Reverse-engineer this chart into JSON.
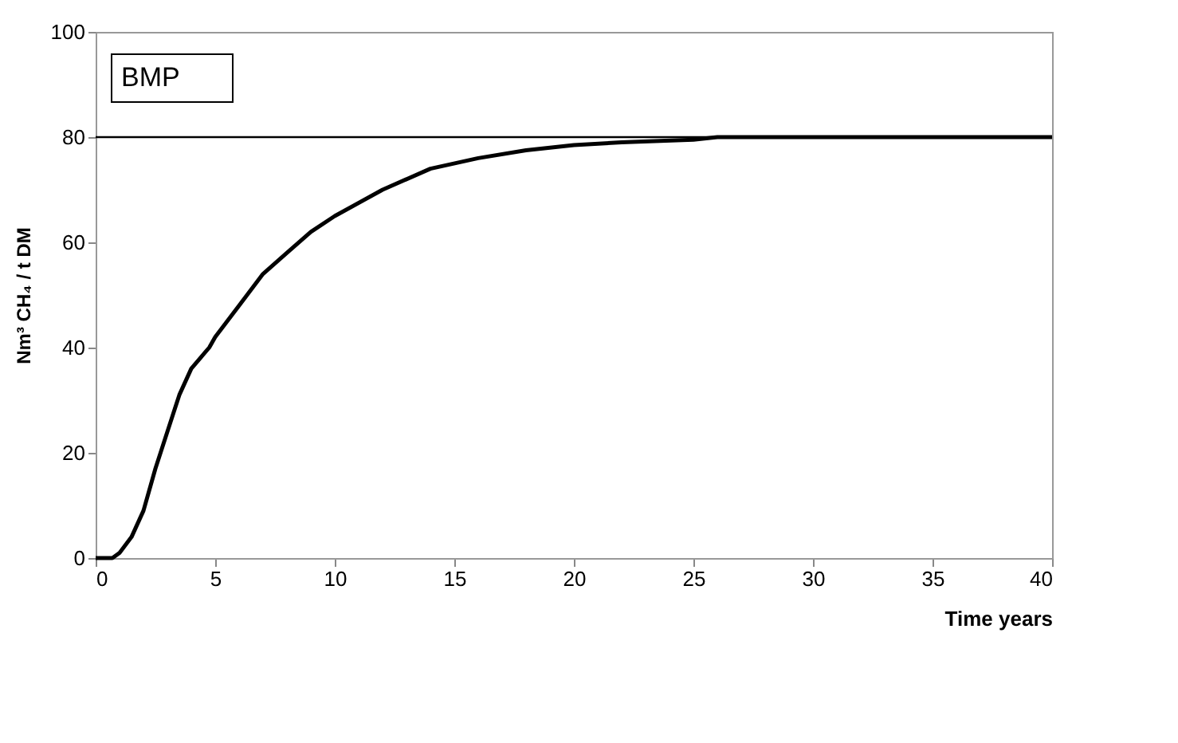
{
  "chart_data": {
    "type": "line",
    "xlabel": "Time years",
    "ylabel": "Nm³ CH₄ / t DM",
    "annotations": [
      "BMP"
    ],
    "ref_lines": [
      {
        "axis": "y",
        "value": 80,
        "color": "#000000"
      }
    ],
    "series": [
      {
        "color": "#000000",
        "x": [
          0,
          0.7,
          1,
          1.5,
          2,
          2.5,
          3,
          3.5,
          4,
          4.75,
          5,
          6,
          7,
          8,
          9,
          10,
          12,
          14,
          16,
          18,
          20,
          22,
          25,
          26,
          30,
          35,
          40
        ],
        "values": [
          0,
          0,
          1,
          4,
          9,
          17,
          24,
          31,
          36,
          40,
          42,
          48,
          54,
          58,
          62,
          65,
          70,
          74,
          76,
          77.5,
          78.5,
          79,
          79.5,
          80,
          80,
          80,
          80
        ]
      }
    ],
    "xlim": [
      0,
      40
    ],
    "xticks": [
      0,
      5,
      10,
      15,
      20,
      25,
      30,
      35,
      40
    ],
    "ylim": [
      0,
      100
    ],
    "yticks": [
      0,
      20,
      40,
      60,
      80,
      100
    ],
    "grid": false,
    "legend": false,
    "marker": "none",
    "line_style": "solid"
  }
}
